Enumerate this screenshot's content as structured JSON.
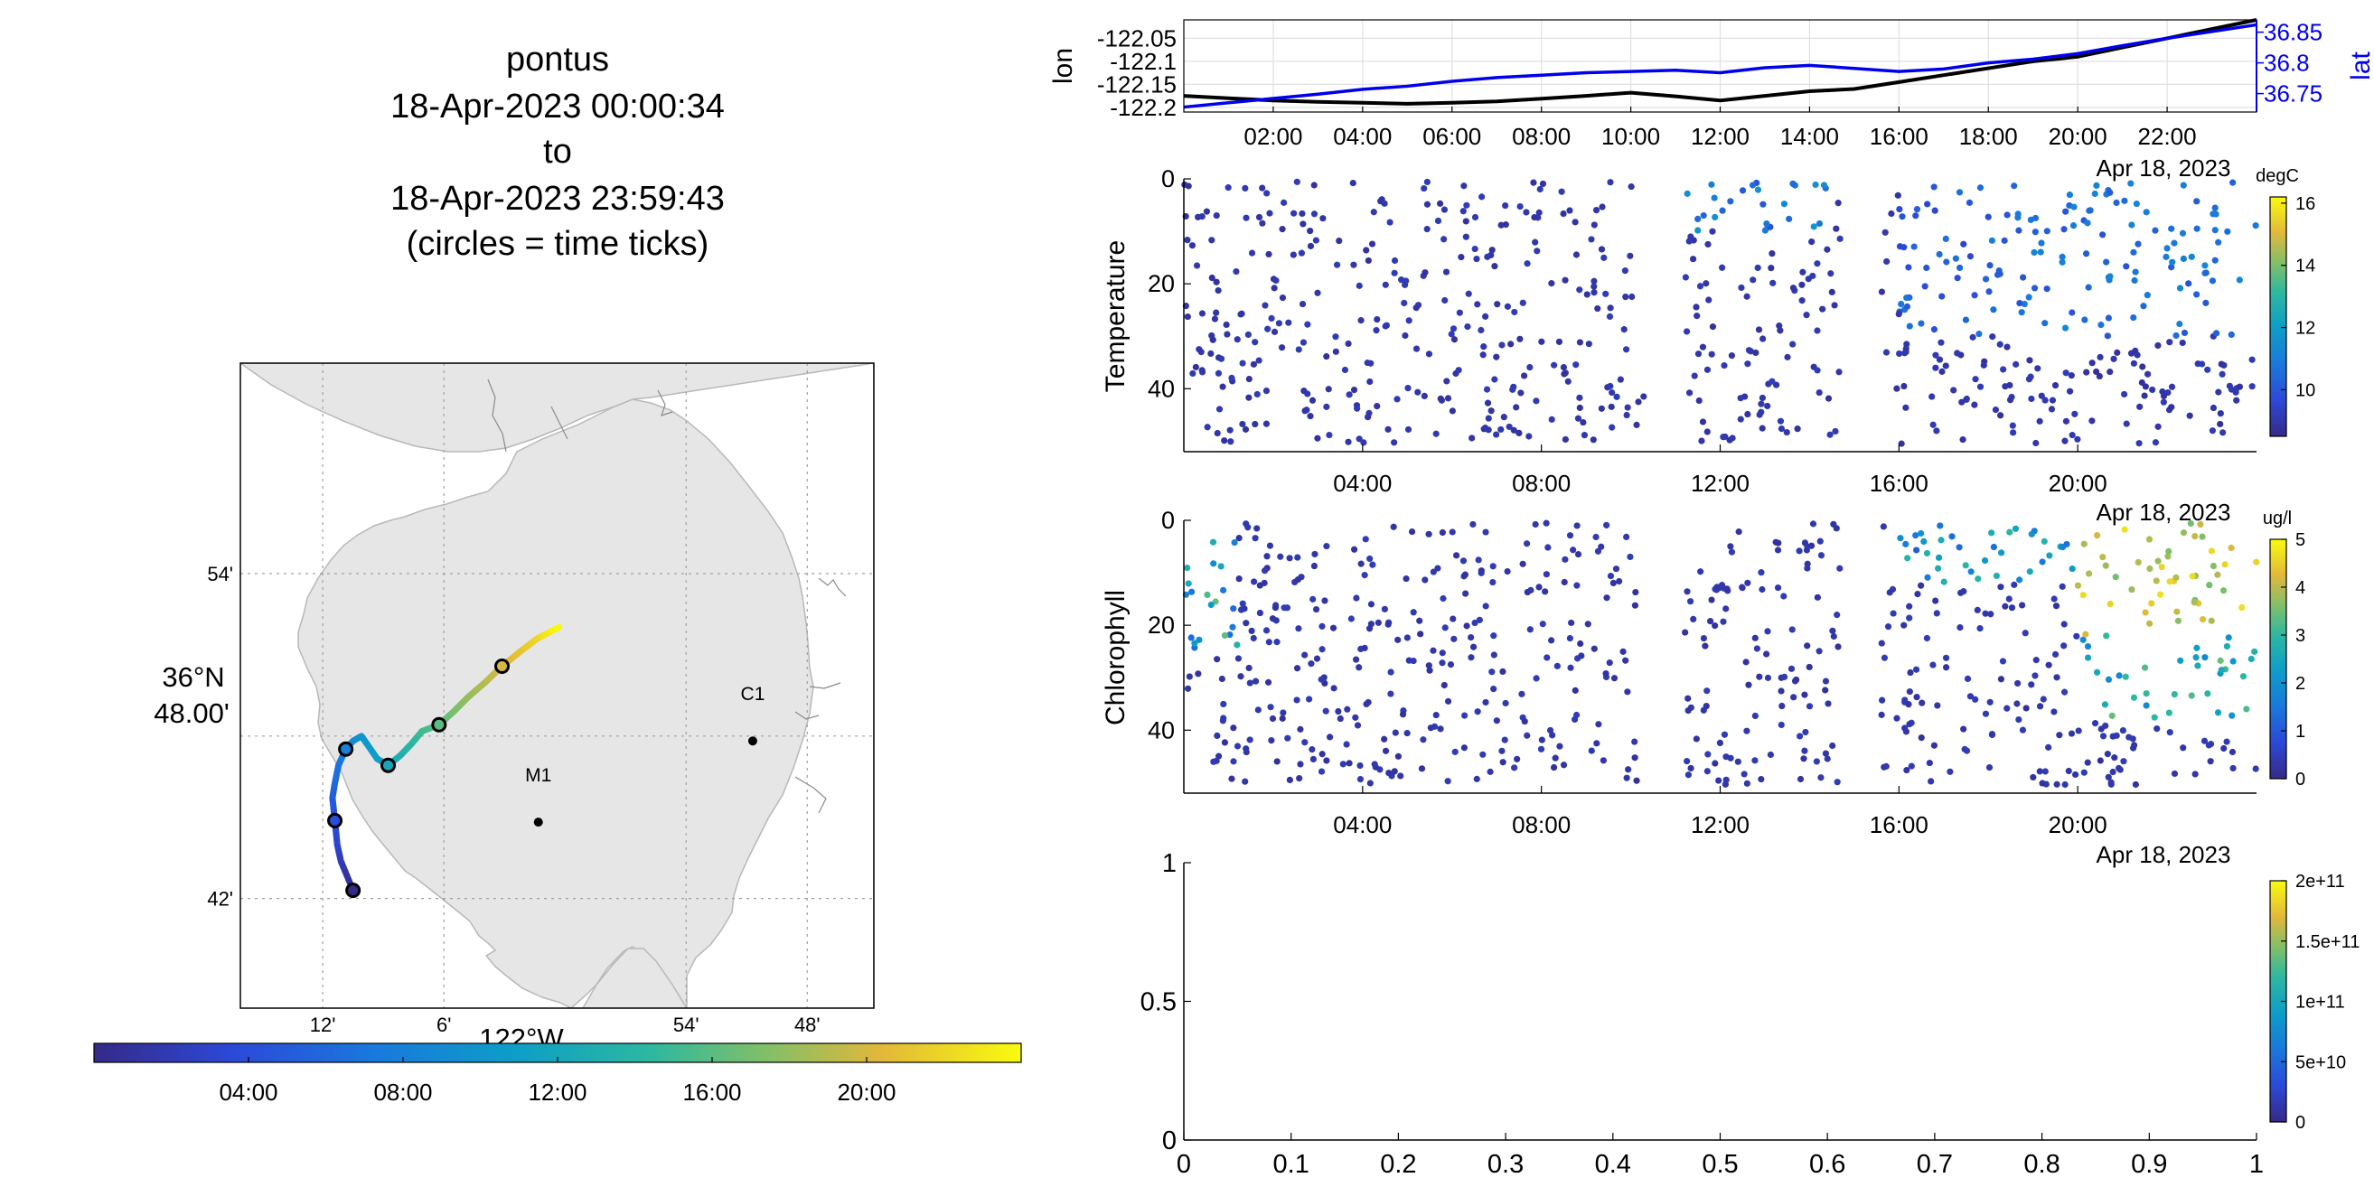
{
  "title": {
    "lines": [
      "pontus",
      "18-Apr-2023 00:00:34",
      "to",
      "18-Apr-2023 23:59:43",
      "(circles = time ticks)"
    ]
  },
  "colors": {
    "lat_axis": "#0000ee",
    "lon_line": "#000000",
    "land": "#e6e6e6",
    "coast": "#b8b8b8",
    "grid": "#a0a0a0"
  },
  "chart_data": [
    {
      "type": "line",
      "name": "map-track",
      "x_ticks": [
        "12'",
        "6'",
        "54'",
        "48'"
      ],
      "x_tick_values": [
        -122.2,
        -122.1,
        -121.9,
        -121.8
      ],
      "y_ticks": [
        "54'",
        "42'"
      ],
      "y_tick_values": [
        36.9,
        36.7
      ],
      "lon_label": "122°W",
      "lat_label_1": "36°N",
      "lat_label_2": "48.00'",
      "stations": [
        {
          "name": "C1",
          "lon": -121.845,
          "lat": 36.797
        },
        {
          "name": "M1",
          "lon": -122.022,
          "lat": 36.747
        }
      ],
      "track_hours": [
        0,
        1,
        2,
        3,
        4,
        5,
        6,
        7,
        8,
        9,
        10,
        11,
        12,
        13,
        14,
        15,
        16,
        17,
        18,
        19,
        20,
        21,
        22,
        24
      ],
      "track_lon": [
        -122.175,
        -122.18,
        -122.185,
        -122.188,
        -122.19,
        -122.192,
        -122.19,
        -122.187,
        -122.181,
        -122.175,
        -122.168,
        -122.155,
        -122.146,
        -122.136,
        -122.127,
        -122.118,
        -122.104,
        -122.092,
        -122.08,
        -122.066,
        -122.052,
        -122.037,
        -122.023,
        -122.005
      ],
      "track_lat": [
        36.705,
        36.714,
        36.723,
        36.733,
        36.748,
        36.762,
        36.771,
        36.782,
        36.792,
        36.797,
        36.8,
        36.786,
        36.782,
        36.788,
        36.795,
        36.803,
        36.807,
        36.815,
        36.824,
        36.833,
        36.843,
        36.852,
        36.86,
        36.867
      ],
      "tick_hours": [
        0,
        4,
        8,
        12,
        16,
        20
      ],
      "colorbar_ticks": [
        "04:00",
        "08:00",
        "12:00",
        "16:00",
        "20:00"
      ],
      "colorbar_tick_hours": [
        4,
        8,
        12,
        16,
        20
      ]
    },
    {
      "type": "line",
      "name": "lon-lat-timeseries",
      "ylabel_left": "lon",
      "ylabel_right": "lat",
      "x_ticks": [
        "02:00",
        "04:00",
        "06:00",
        "08:00",
        "10:00",
        "12:00",
        "14:00",
        "16:00",
        "18:00",
        "20:00",
        "22:00"
      ],
      "x_tick_hours": [
        2,
        4,
        6,
        8,
        10,
        12,
        14,
        16,
        18,
        20,
        22
      ],
      "date_label": "Apr 18, 2023",
      "left_ticks": [
        "-122.05",
        "-122.1",
        "-122.15",
        "-122.2"
      ],
      "left_tick_values": [
        -122.05,
        -122.1,
        -122.15,
        -122.2
      ],
      "left_ylim": [
        -122.21,
        -122.01
      ],
      "right_ticks": [
        "36.85",
        "36.8",
        "36.75"
      ],
      "right_tick_values": [
        36.85,
        36.8,
        36.75
      ],
      "right_ylim": [
        36.72,
        36.87
      ],
      "hours": [
        0,
        1,
        2,
        3,
        4,
        5,
        6,
        7,
        8,
        9,
        10,
        11,
        12,
        13,
        14,
        15,
        16,
        17,
        18,
        19,
        20,
        21,
        22,
        24
      ],
      "lon": [
        -122.175,
        -122.18,
        -122.185,
        -122.188,
        -122.19,
        -122.192,
        -122.19,
        -122.187,
        -122.181,
        -122.175,
        -122.168,
        -122.176,
        -122.185,
        -122.175,
        -122.165,
        -122.16,
        -122.145,
        -122.13,
        -122.115,
        -122.1,
        -122.09,
        -122.07,
        -122.05,
        -122.01
      ],
      "lat": [
        36.728,
        36.735,
        36.742,
        36.749,
        36.757,
        36.762,
        36.77,
        36.776,
        36.78,
        36.784,
        36.786,
        36.788,
        36.784,
        36.792,
        36.796,
        36.791,
        36.786,
        36.79,
        36.8,
        36.806,
        36.815,
        36.828,
        36.84,
        36.862
      ]
    },
    {
      "type": "scatter",
      "name": "temperature-section",
      "ylabel": "Temperature",
      "y_ticks": [
        "0",
        "20",
        "40"
      ],
      "y_tick_values": [
        0,
        20,
        40
      ],
      "ylim": [
        0,
        52
      ],
      "x_ticks": [
        "04:00",
        "08:00",
        "12:00",
        "16:00",
        "20:00"
      ],
      "x_tick_hours": [
        4,
        8,
        12,
        16,
        20
      ],
      "date_label": "Apr 18, 2023",
      "colorbar_unit": "degC",
      "colorbar_ticks": [
        "16",
        "14",
        "12",
        "10"
      ],
      "colorbar_tick_values": [
        16,
        14,
        12,
        10
      ],
      "clim": [
        8.5,
        16.2
      ],
      "gaps": [
        [
          10.3,
          11.2
        ],
        [
          14.7,
          15.6
        ]
      ]
    },
    {
      "type": "scatter",
      "name": "chlorophyll-section",
      "ylabel": "Chlorophyll",
      "y_ticks": [
        "0",
        "20",
        "40"
      ],
      "y_tick_values": [
        0,
        20,
        40
      ],
      "ylim": [
        0,
        52
      ],
      "x_ticks": [
        "04:00",
        "08:00",
        "12:00",
        "16:00",
        "20:00"
      ],
      "x_tick_hours": [
        4,
        8,
        12,
        16,
        20
      ],
      "date_label": "Apr 18, 2023",
      "colorbar_unit": "ug/l",
      "colorbar_ticks": [
        "5",
        "4",
        "3",
        "2",
        "1",
        "0"
      ],
      "colorbar_tick_values": [
        5,
        4,
        3,
        2,
        1,
        0
      ],
      "clim": [
        0,
        5
      ],
      "gaps": [
        [
          10.3,
          11.2
        ],
        [
          14.7,
          15.6
        ]
      ]
    },
    {
      "type": "scatter",
      "name": "empty-axes",
      "x_ticks": [
        "0",
        "0.1",
        "0.2",
        "0.3",
        "0.4",
        "0.5",
        "0.6",
        "0.7",
        "0.8",
        "0.9",
        "1"
      ],
      "x_tick_values": [
        0,
        0.1,
        0.2,
        0.3,
        0.4,
        0.5,
        0.6,
        0.7,
        0.8,
        0.9,
        1
      ],
      "y_ticks": [
        "1",
        "0.5",
        "0"
      ],
      "y_tick_values": [
        1,
        0.5,
        0
      ],
      "colorbar_ticks": [
        "2e+11",
        "1.5e+11",
        "1e+11",
        "5e+10",
        "0"
      ],
      "colorbar_tick_values": [
        200000000000.0,
        150000000000.0,
        100000000000.0,
        50000000000.0,
        0
      ]
    }
  ]
}
